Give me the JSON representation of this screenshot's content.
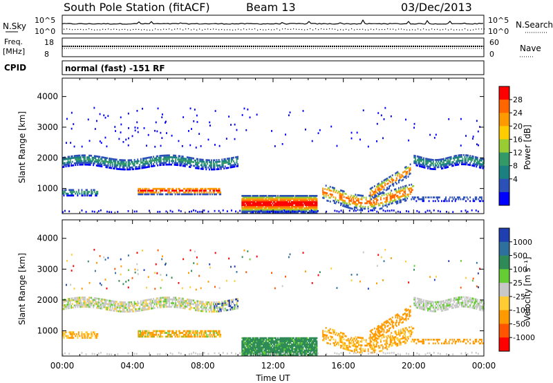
{
  "header": {
    "station": "South Pole Station (fitACF)",
    "beam": "Beam 13",
    "date": "03/Dec/2013"
  },
  "top_panels": {
    "nsky_label": "N.Sky",
    "nsky_ticks": [
      "10^5",
      "10^0"
    ],
    "nsearch_label": "N.Search",
    "nsearch_ticks": [
      "10^5",
      "10^0"
    ],
    "freq_label_1": "Freq.",
    "freq_label_2": "[MHz]",
    "freq_ticks": [
      "18",
      "8"
    ],
    "nave_label": "Nave",
    "nave_ticks": [
      "60",
      "0"
    ],
    "cpid_label": "CPID",
    "cpid_text": "normal (fast) -151 RF"
  },
  "chart_data": [
    {
      "type": "heatmap",
      "name": "power-panel",
      "ylabel": "Slant Range [km]",
      "xlabel": "",
      "ylim": [
        180,
        4600
      ],
      "xlim": [
        0,
        24
      ],
      "y_ticks": [
        "1000",
        "2000",
        "3000",
        "4000"
      ],
      "colorbar_label": "Power [dB]",
      "colorbar_ticks": [
        "28",
        "24",
        "20",
        "16",
        "12",
        "8",
        "4"
      ],
      "colorbar_colors": [
        "#ff0000",
        "#ff6600",
        "#ff9900",
        "#ffcc00",
        "#99cc33",
        "#339966",
        "#1a8080",
        "#2b50b8",
        "#0000ff"
      ]
    },
    {
      "type": "heatmap",
      "name": "velocity-panel",
      "ylabel": "Slant Range [km]",
      "xlabel": "Time UT",
      "ylim": [
        180,
        4600
      ],
      "xlim": [
        0,
        24
      ],
      "y_ticks": [
        "1000",
        "2000",
        "3000",
        "4000"
      ],
      "x_ticks": [
        "00:00",
        "04:00",
        "08:00",
        "12:00",
        "16:00",
        "20:00",
        "00:00"
      ],
      "colorbar_label": "Velocity [m s⁻¹]",
      "colorbar_ticks": [
        "1000",
        "500",
        "100",
        "25",
        "-25",
        "-100",
        "-500",
        "-1000"
      ],
      "colorbar_colors": [
        "#1f3fb0",
        "#2e6f9e",
        "#2e8b57",
        "#66cc33",
        "#c8c8c8",
        "#ffcc33",
        "#ff9900",
        "#ff5500",
        "#ff0000"
      ]
    }
  ]
}
